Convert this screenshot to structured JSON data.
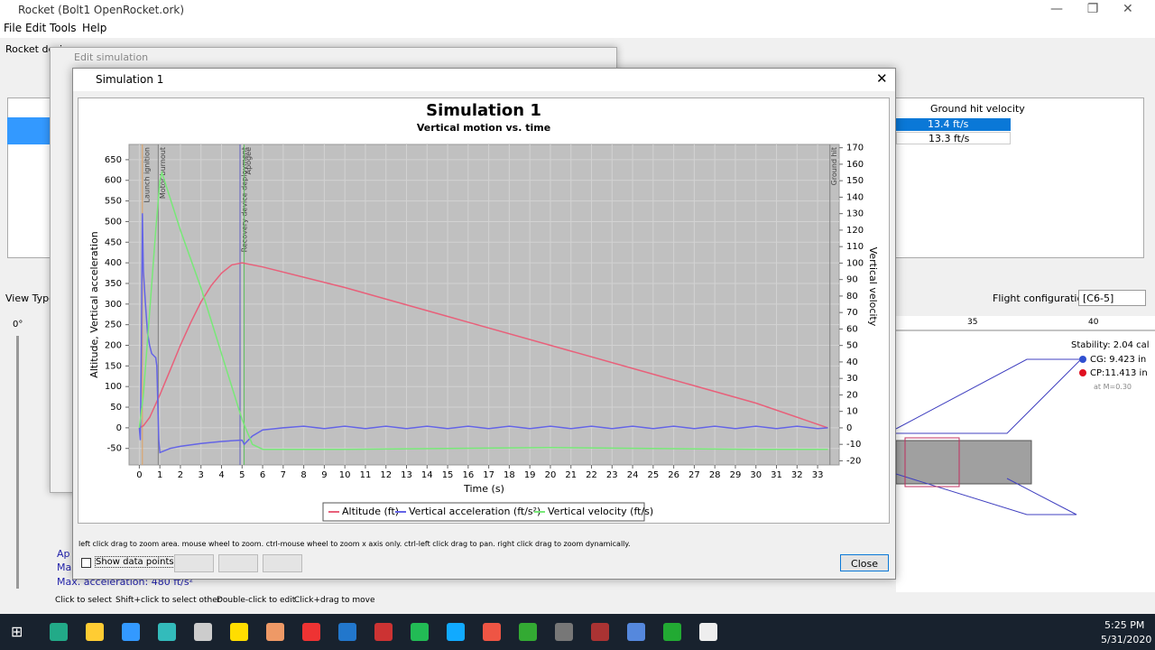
{
  "window": {
    "title": "Rocket (Bolt1 OpenRocket.ork)",
    "menu": [
      "File",
      "Edit",
      "Tools",
      "Help"
    ],
    "tab": "Rocket design"
  },
  "edit_dialog": {
    "title": "Edit simulation"
  },
  "table": {
    "header": "Ground hit velocity",
    "rows": [
      "13.4 ft/s",
      "13.3 ft/s"
    ]
  },
  "design": {
    "view_type": "View Type:",
    "angle": "0°",
    "flight_config_label": "Flight configuration:",
    "flight_config": "[C6-5]",
    "ruler": [
      "35",
      "40"
    ],
    "stability": "Stability: 2.04 cal",
    "cg": "CG: 9.423 in",
    "cp": "CP:11.413 in",
    "mach": "at M=0.30",
    "summary": [
      "Ap",
      "Ma",
      "Max. acceleration: 480 ft/s²"
    ]
  },
  "status_bar": [
    "Click to select",
    "Shift+click to select other",
    "Double-click to edit",
    "Click+drag to move"
  ],
  "dialog": {
    "title": "Simulation 1",
    "help": "left click drag to zoom area. mouse wheel to zoom. ctrl-mouse wheel to zoom x axis only. ctrl-left click drag to pan.  right click drag to zoom dynamically.",
    "show_points": "Show data points",
    "close": "Close"
  },
  "taskbar": {
    "time": "5:25 PM",
    "date": "5/31/2020"
  },
  "chart_data": {
    "type": "line",
    "title": "Simulation 1",
    "subtitle": "Vertical motion vs. time",
    "x_label": "Time (s)",
    "y_label": "Altitude, Vertical acceleration",
    "y2_label": "Vertical velocity",
    "grid": true,
    "xlim": [
      -0.5,
      34.05
    ],
    "ylim": [
      -90,
      687
    ],
    "y2lim": [
      -22.5,
      172
    ],
    "xticks": [
      0,
      1,
      2,
      3,
      4,
      5,
      6,
      7,
      8,
      9,
      10,
      11,
      12,
      13,
      14,
      15,
      16,
      17,
      18,
      19,
      20,
      21,
      22,
      23,
      24,
      25,
      26,
      27,
      28,
      29,
      30,
      31,
      32,
      33
    ],
    "yticks": [
      -50,
      0,
      50,
      100,
      150,
      200,
      250,
      300,
      350,
      400,
      450,
      500,
      550,
      600,
      650
    ],
    "y2ticks": [
      -20,
      -10,
      0,
      10,
      20,
      30,
      40,
      50,
      60,
      70,
      80,
      90,
      100,
      110,
      120,
      130,
      140,
      150,
      160,
      170
    ],
    "series": [
      {
        "name": "Altitude (ft)",
        "color": "#e8607a",
        "x": [
          0,
          0.2,
          0.5,
          1,
          1.5,
          2,
          2.5,
          3,
          3.5,
          4,
          4.5,
          5,
          6,
          10,
          15,
          20,
          25,
          30,
          33.5
        ],
        "values": [
          0,
          5,
          25,
          80,
          140,
          200,
          255,
          305,
          345,
          375,
          395,
          400,
          390,
          340,
          270,
          200,
          130,
          60,
          0
        ]
      },
      {
        "name": "Vertical acceleration (ft/s²)",
        "color": "#6464e6",
        "x": [
          0,
          0.05,
          0.1,
          0.15,
          0.2,
          0.3,
          0.4,
          0.5,
          0.6,
          0.7,
          0.8,
          0.85,
          0.9,
          0.95,
          1,
          1.5,
          2,
          3,
          4,
          4.9,
          5,
          5.1,
          5.5,
          6,
          7,
          8,
          9,
          10,
          11,
          12,
          13,
          14,
          15,
          16,
          17,
          18,
          19,
          20,
          21,
          22,
          23,
          24,
          25,
          26,
          27,
          28,
          29,
          30,
          31,
          32,
          33,
          33.5
        ],
        "values": [
          0,
          -30,
          200,
          520,
          380,
          300,
          230,
          200,
          180,
          175,
          170,
          150,
          60,
          -30,
          -60,
          -50,
          -45,
          -38,
          -33,
          -30,
          -30,
          -40,
          -20,
          -5,
          0,
          4,
          -2,
          4,
          -2,
          4,
          -2,
          4,
          -2,
          4,
          -2,
          4,
          -2,
          4,
          -2,
          4,
          -2,
          4,
          -2,
          4,
          -2,
          4,
          -2,
          4,
          -2,
          4,
          -2,
          0
        ]
      },
      {
        "name": "Vertical velocity (ft/s)",
        "color": "#78e878",
        "axis": "y2",
        "x": [
          0,
          0.2,
          0.5,
          0.8,
          1,
          1.1,
          2,
          3,
          4,
          5,
          5.5,
          6,
          10,
          20,
          30,
          33.5
        ],
        "values": [
          0,
          20,
          70,
          120,
          150,
          155,
          120,
          85,
          45,
          5,
          -10,
          -13,
          -13,
          -12,
          -13,
          -13
        ]
      }
    ],
    "events": [
      {
        "x": 0.15,
        "label": "Launch ignition",
        "color": "#e0a060"
      },
      {
        "x": 0.92,
        "label": "Motor burnout",
        "color": "#808080"
      },
      {
        "x": 4.9,
        "label": "Recovery device deployment",
        "color": "#6060c0"
      },
      {
        "x": 5.1,
        "label": "Apogee",
        "color": "#60c060"
      },
      {
        "x": 33.6,
        "label": "Ground hit",
        "color": "#808080"
      }
    ]
  }
}
